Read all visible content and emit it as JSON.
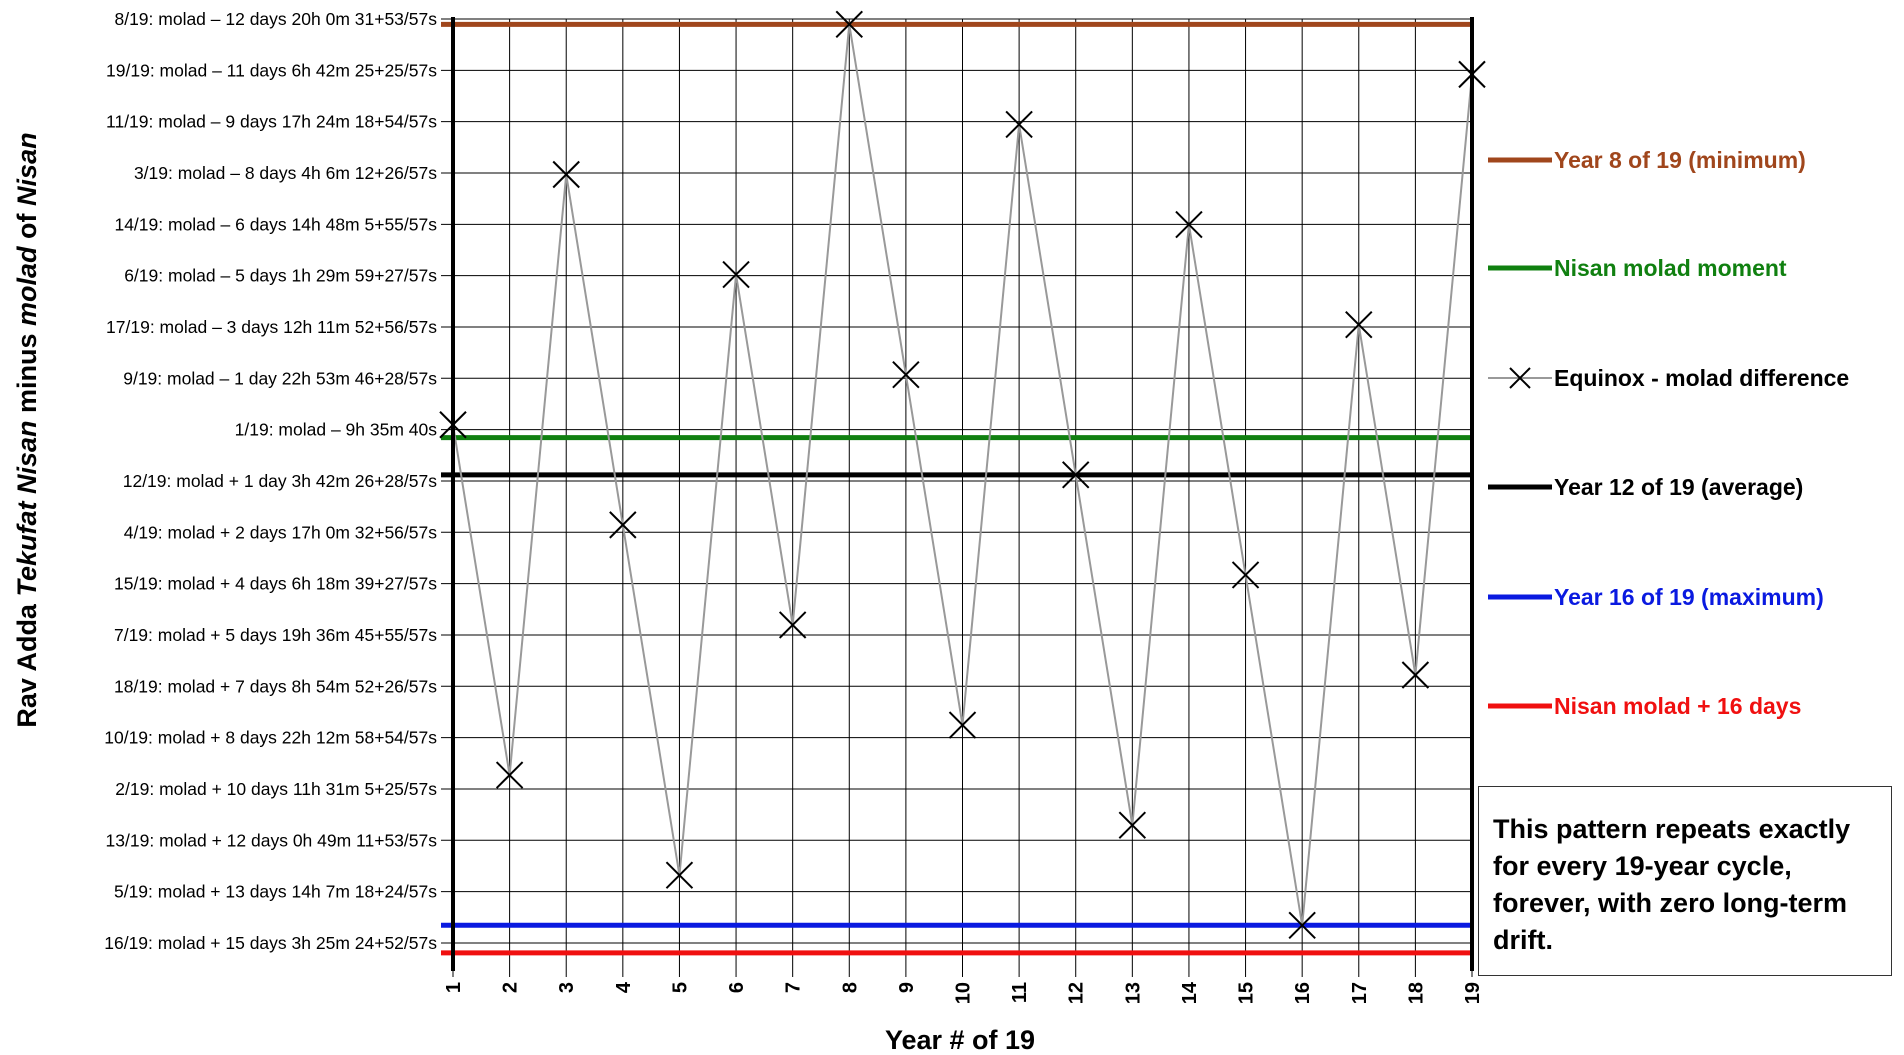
{
  "chart_data": {
    "type": "line",
    "xlabel": "Year # of 19",
    "ylabel_parts": [
      {
        "text": "Rav Adda ",
        "italic": false
      },
      {
        "text": "Tekufat Nisan",
        "italic": true
      },
      {
        "text": " minus ",
        "italic": false
      },
      {
        "text": "molad",
        "italic": true
      },
      {
        "text": " of ",
        "italic": false
      },
      {
        "text": "Nisan",
        "italic": true
      }
    ],
    "y_tick_labels": [
      "8/19: molad – 12 days 20h 0m 31+53/57s",
      "19/19: molad – 11 days 6h 42m 25+25/57s",
      "11/19: molad – 9 days 17h 24m 18+54/57s",
      "3/19: molad – 8 days 4h 6m 12+26/57s",
      "14/19: molad – 6 days 14h 48m 5+55/57s",
      "6/19: molad – 5 days 1h 29m 59+27/57s",
      "17/19: molad – 3 days 12h 11m 52+56/57s",
      "9/19: molad – 1 day 22h 53m 46+28/57s",
      "1/19: molad – 9h 35m 40s",
      "12/19: molad + 1 day 3h 42m 26+28/57s",
      "4/19: molad + 2 days 17h 0m 32+56/57s",
      "15/19: molad + 4 days 6h 18m 39+27/57s",
      "7/19: molad + 5 days 19h 36m 45+55/57s",
      "18/19: molad + 7 days 8h 54m 52+26/57s",
      "10/19: molad + 8 days 22h 12m 58+54/57s",
      "2/19: molad + 10 days 11h 31m 5+25/57s",
      "13/19: molad + 12 days 0h 49m 11+53/57s",
      "5/19: molad + 13 days 14h 7m 18+24/57s",
      "16/19: molad + 15 days 3h 25m 24+52/57s"
    ],
    "x": [
      1,
      2,
      3,
      4,
      5,
      6,
      7,
      8,
      9,
      10,
      11,
      12,
      13,
      14,
      15,
      16,
      17,
      18,
      19
    ],
    "y_unit": "days (equinox minus molad)",
    "ylim": [
      -13,
      16.5
    ],
    "y_inverted": true,
    "series": [
      {
        "name": "Equinox - molad difference",
        "color": "#999999",
        "marker": "x",
        "values": [
          -0.4,
          10.479,
          -8.171,
          2.709,
          13.588,
          -5.063,
          5.817,
          -12.834,
          -1.954,
          8.925,
          -9.725,
          1.155,
          12.034,
          -6.617,
          4.263,
          15.143,
          -3.508,
          7.371,
          -11.28
        ]
      }
    ],
    "reference_lines": [
      {
        "name": "Year 8 of 19 (minimum)",
        "value": -12.834,
        "color": "#a0461c"
      },
      {
        "name": "Nisan molad moment",
        "value": 0,
        "color": "#108010"
      },
      {
        "name": "Year 12 of 19 (average)",
        "value": 1.155,
        "color": "#000000"
      },
      {
        "name": "Year 16 of 19 (maximum)",
        "value": 15.143,
        "color": "#0a1ae0"
      },
      {
        "name": "Nisan molad + 16 days",
        "value": 16,
        "color": "#f01010"
      }
    ],
    "legend": [
      {
        "label": "Year 8 of 19 (minimum)",
        "color": "#a0461c",
        "marker": "line"
      },
      {
        "label": "Nisan molad moment",
        "color": "#108010",
        "marker": "line"
      },
      {
        "label": "Equinox - molad difference",
        "color": "#000000",
        "marker": "x-line"
      },
      {
        "label": "Year 12 of 19 (average)",
        "color": "#000000",
        "marker": "line"
      },
      {
        "label": "Year 16 of 19 (maximum)",
        "color": "#0a1ae0",
        "marker": "line"
      },
      {
        "label": "Nisan molad + 16 days",
        "color": "#f01010",
        "marker": "line"
      }
    ],
    "legend_placement": "right",
    "grid": true
  },
  "note": {
    "text": "This pattern repeats exactly for every 19-year cycle, forever, with zero long-term drift."
  }
}
